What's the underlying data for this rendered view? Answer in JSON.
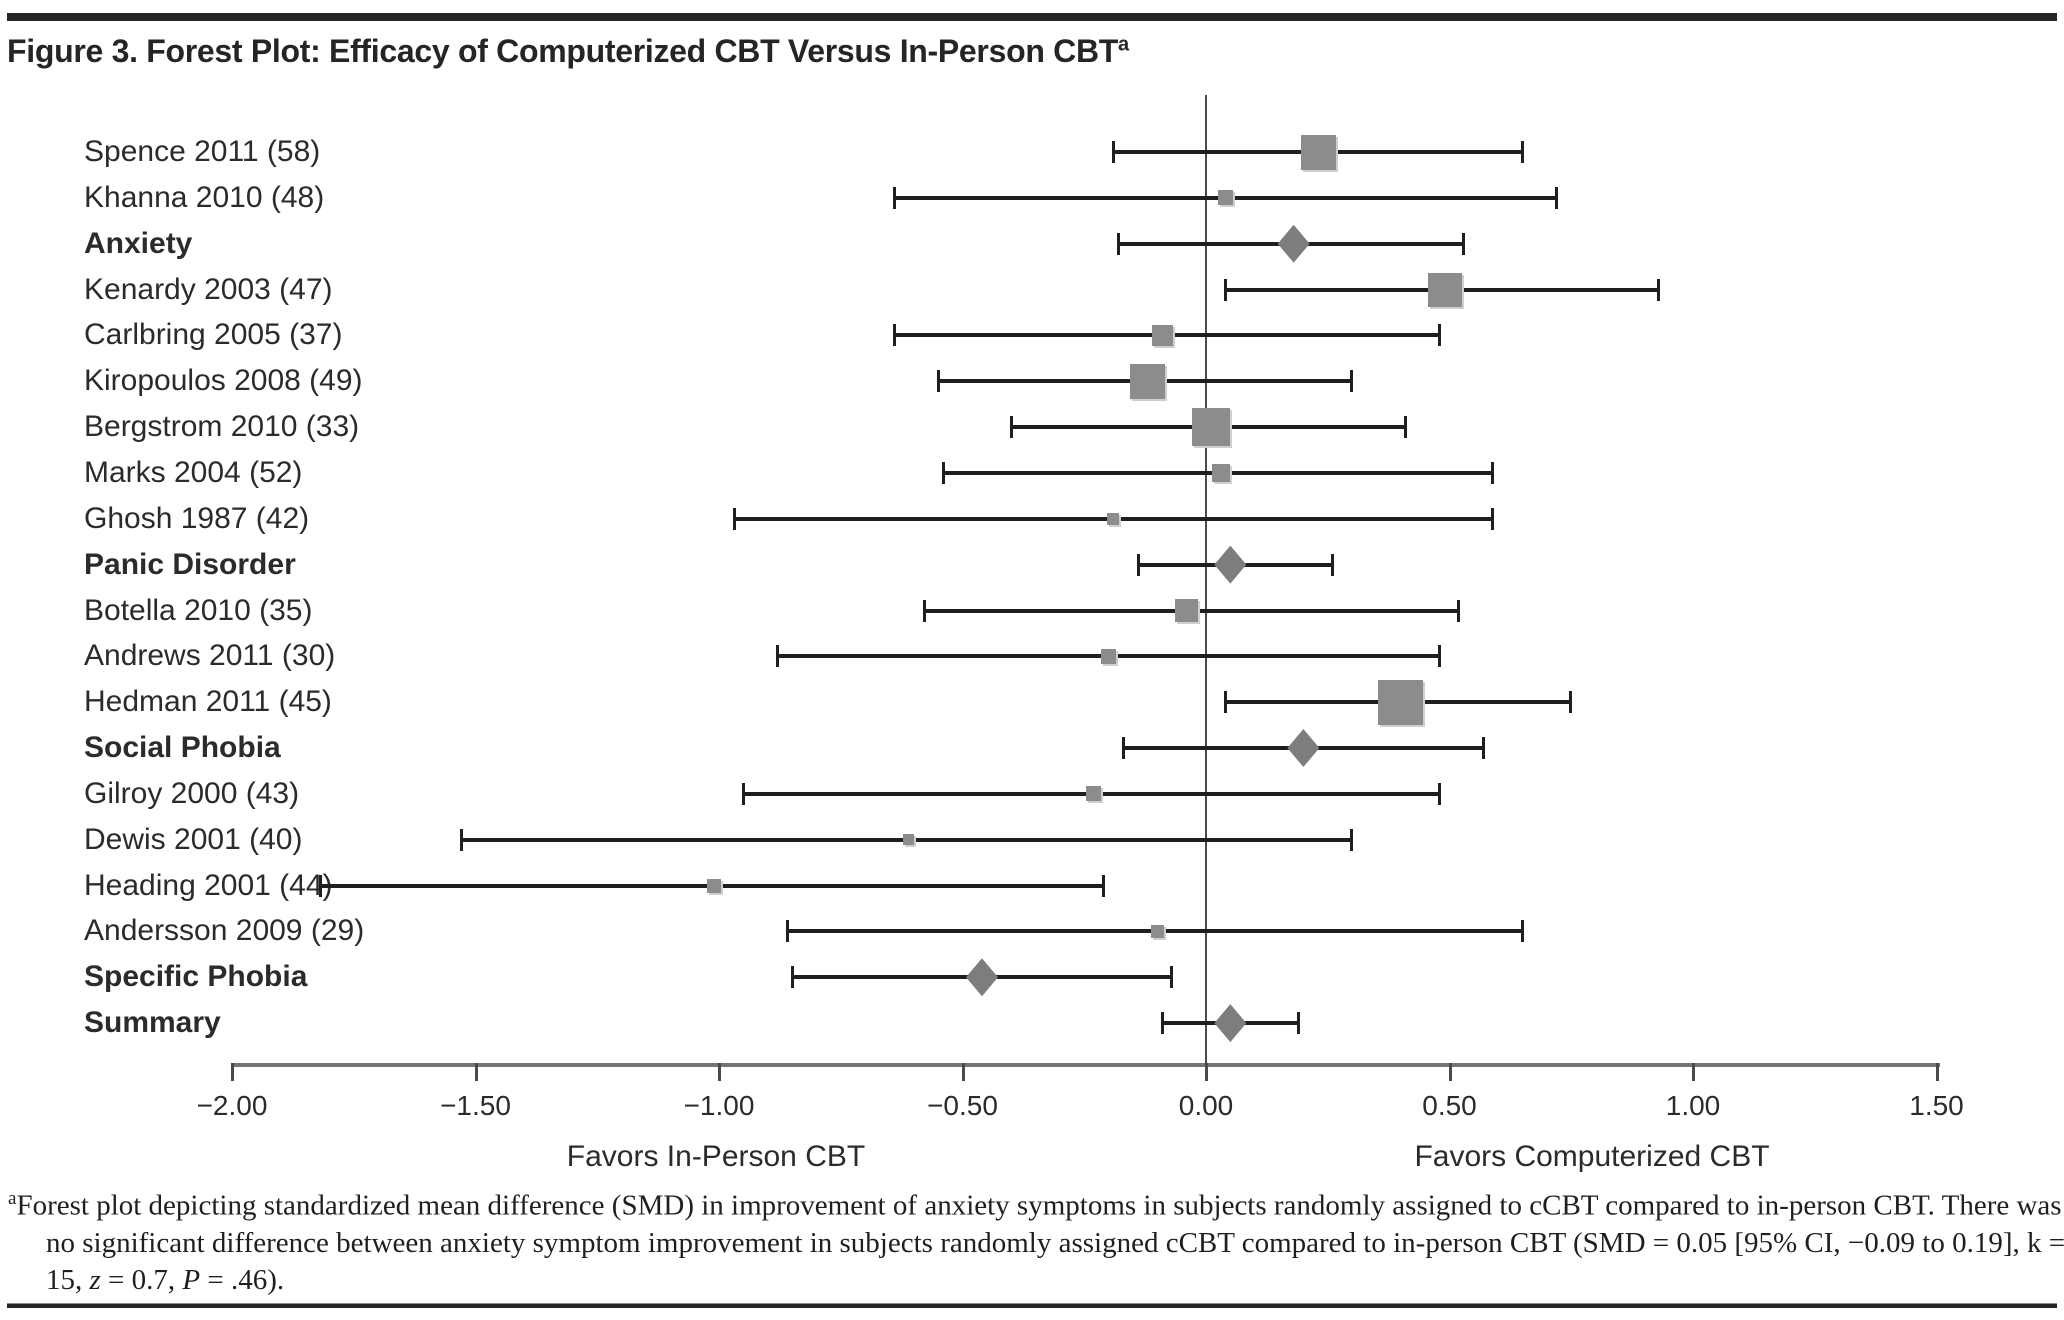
{
  "title": {
    "text": "Figure 3. Forest Plot: Efficacy of Computerized CBT Versus In-Person CBT",
    "superscript": "a"
  },
  "colors": {
    "rule": "#262424",
    "ci_line": "#1f1f1f",
    "square_marker": "#8c8c8c",
    "diamond_marker": "#7d7d7d",
    "axis_line": "#757575",
    "zero_line": "#4a4a4a",
    "text": "#2b2b2b"
  },
  "chart_data": {
    "type": "scatter",
    "subtype": "forest-plot",
    "xlim": [
      -2.0,
      1.5
    ],
    "x_ticks": [
      -2.0,
      -1.5,
      -1.0,
      -0.5,
      0.0,
      0.5,
      1.0,
      1.5
    ],
    "x_tick_labels": [
      "−2.00",
      "−1.50",
      "−1.00",
      "−0.50",
      "0.00",
      "0.50",
      "1.00",
      "1.50"
    ],
    "zero_reference_line": 0.0,
    "xlabel_left": "Favors In-Person CBT",
    "xlabel_right": "Favors Computerized CBT",
    "grid": false,
    "legend": false,
    "rows": [
      {
        "label": "Spence 2011 (58)",
        "kind": "study",
        "smd": 0.23,
        "ci_low": -0.19,
        "ci_high": 0.65,
        "marker_size": 35
      },
      {
        "label": "Khanna 2010 (48)",
        "kind": "study",
        "smd": 0.04,
        "ci_low": -0.64,
        "ci_high": 0.72,
        "marker_size": 15
      },
      {
        "label": "Anxiety",
        "kind": "summary",
        "smd": 0.18,
        "ci_low": -0.18,
        "ci_high": 0.53
      },
      {
        "label": "Kenardy 2003 (47)",
        "kind": "study",
        "smd": 0.49,
        "ci_low": 0.04,
        "ci_high": 0.93,
        "marker_size": 34
      },
      {
        "label": "Carlbring 2005 (37)",
        "kind": "study",
        "smd": -0.09,
        "ci_low": -0.64,
        "ci_high": 0.48,
        "marker_size": 21
      },
      {
        "label": "Kiropoulos 2008 (49)",
        "kind": "study",
        "smd": -0.12,
        "ci_low": -0.55,
        "ci_high": 0.3,
        "marker_size": 35
      },
      {
        "label": "Bergstrom 2010 (33)",
        "kind": "study",
        "smd": 0.01,
        "ci_low": -0.4,
        "ci_high": 0.41,
        "marker_size": 38
      },
      {
        "label": "Marks 2004 (52)",
        "kind": "study",
        "smd": 0.03,
        "ci_low": -0.54,
        "ci_high": 0.59,
        "marker_size": 18
      },
      {
        "label": "Ghosh 1987 (42)",
        "kind": "study",
        "smd": -0.19,
        "ci_low": -0.97,
        "ci_high": 0.59,
        "marker_size": 12
      },
      {
        "label": "Panic Disorder",
        "kind": "summary",
        "smd": 0.05,
        "ci_low": -0.14,
        "ci_high": 0.26
      },
      {
        "label": "Botella 2010 (35)",
        "kind": "study",
        "smd": -0.04,
        "ci_low": -0.58,
        "ci_high": 0.52,
        "marker_size": 23
      },
      {
        "label": "Andrews 2011 (30)",
        "kind": "study",
        "smd": -0.2,
        "ci_low": -0.88,
        "ci_high": 0.48,
        "marker_size": 15
      },
      {
        "label": "Hedman 2011 (45)",
        "kind": "study",
        "smd": 0.4,
        "ci_low": 0.04,
        "ci_high": 0.75,
        "marker_size": 45
      },
      {
        "label": "Social Phobia",
        "kind": "summary",
        "smd": 0.2,
        "ci_low": -0.17,
        "ci_high": 0.57
      },
      {
        "label": "Gilroy 2000 (43)",
        "kind": "study",
        "smd": -0.23,
        "ci_low": -0.95,
        "ci_high": 0.48,
        "marker_size": 15
      },
      {
        "label": "Dewis 2001 (40)",
        "kind": "study",
        "smd": -0.61,
        "ci_low": -1.53,
        "ci_high": 0.3,
        "marker_size": 11
      },
      {
        "label": "Heading 2001 (44)",
        "kind": "study",
        "smd": -1.01,
        "ci_low": -1.82,
        "ci_high": -0.21,
        "marker_size": 14
      },
      {
        "label": "Andersson 2009 (29)",
        "kind": "study",
        "smd": -0.1,
        "ci_low": -0.86,
        "ci_high": 0.65,
        "marker_size": 13
      },
      {
        "label": "Specific Phobia",
        "kind": "summary",
        "smd": -0.46,
        "ci_low": -0.85,
        "ci_high": -0.07
      },
      {
        "label": "Summary",
        "kind": "summary",
        "smd": 0.05,
        "ci_low": -0.09,
        "ci_high": 0.19
      }
    ]
  },
  "footnote": {
    "sup": "a",
    "run1": "Forest plot depicting standardized mean difference (SMD) in improvement of anxiety symptoms in subjects randomly assigned to cCBT compared to in-person CBT. There was no significant difference between anxiety symptom improvement in subjects randomly assigned cCBT compared to in-person CBT (SMD = 0.05 [95% CI, −0.09 to 0.19], k = 15, ",
    "italic1": "z",
    "run2": " = 0.7, ",
    "italic2": "P",
    "run3": " = .46)."
  }
}
